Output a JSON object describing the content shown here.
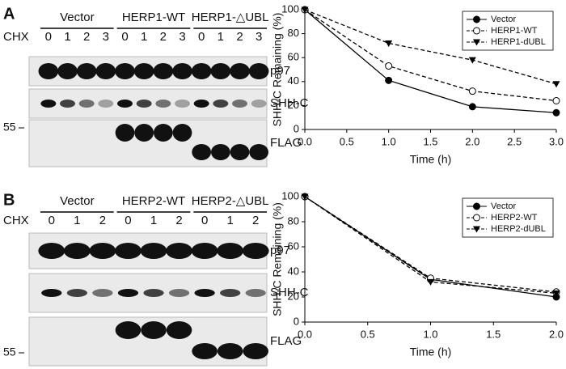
{
  "panels": [
    {
      "label": "A",
      "treatment": "CHX",
      "marker_label": "55",
      "groups": [
        {
          "name": "Vector",
          "lanes": [
            "0",
            "1",
            "2",
            "3"
          ]
        },
        {
          "name": "HERP1-WT",
          "lanes": [
            "0",
            "1",
            "2",
            "3"
          ]
        },
        {
          "name": "HERP1-△UBL",
          "lanes": [
            "0",
            "1",
            "2",
            "3"
          ]
        }
      ],
      "rows": [
        "p97",
        "SHH-C",
        "FLAG"
      ]
    },
    {
      "label": "B",
      "treatment": "CHX",
      "marker_label": "55",
      "groups": [
        {
          "name": "Vector",
          "lanes": [
            "0",
            "1",
            "2"
          ]
        },
        {
          "name": "HERP2-WT",
          "lanes": [
            "0",
            "1",
            "2"
          ]
        },
        {
          "name": "HERP2-△UBL",
          "lanes": [
            "0",
            "1",
            "2"
          ]
        }
      ],
      "rows": [
        "p97",
        "SHH-C",
        "FLAG"
      ]
    }
  ],
  "chart_data": [
    {
      "type": "line",
      "ylabel": "SHH-C Remaining (%)",
      "xlabel": "Time (h)",
      "x": [
        0,
        1,
        2,
        3
      ],
      "xlim": [
        0,
        3
      ],
      "xticks": [
        {
          "value": 0,
          "label": "0.0"
        },
        {
          "value": 0.5,
          "label": "0.5"
        },
        {
          "value": 1,
          "label": "1.0"
        },
        {
          "value": 1.5,
          "label": "1.5"
        },
        {
          "value": 2,
          "label": "2.0"
        },
        {
          "value": 2.5,
          "label": "2.5"
        },
        {
          "value": 3,
          "label": "3.0"
        }
      ],
      "ylim": [
        0,
        100
      ],
      "yticks": [
        0,
        20,
        40,
        60,
        80,
        100
      ],
      "legend": "upper right",
      "series": [
        {
          "name": "Vector",
          "color": "#000000",
          "marker": "circle",
          "dash": false,
          "values": [
            100,
            41,
            19,
            14
          ]
        },
        {
          "name": "HERP1-WT",
          "color": "#000000",
          "marker": "circle-open",
          "dash": true,
          "values": [
            100,
            53,
            32,
            24
          ]
        },
        {
          "name": "HERP1-dUBL",
          "color": "#000000",
          "marker": "triangle-down",
          "dash": true,
          "values": [
            100,
            72,
            58,
            38
          ]
        }
      ]
    },
    {
      "type": "line",
      "ylabel": "SHH-C Remaining (%)",
      "xlabel": "Time (h)",
      "x": [
        0,
        1,
        2
      ],
      "xlim": [
        0,
        2
      ],
      "xticks": [
        {
          "value": 0,
          "label": "0.0"
        },
        {
          "value": 0.5,
          "label": "0.5"
        },
        {
          "value": 1,
          "label": "1.0"
        },
        {
          "value": 1.5,
          "label": "1.5"
        },
        {
          "value": 2,
          "label": "2.0"
        }
      ],
      "ylim": [
        0,
        100
      ],
      "yticks": [
        0,
        20,
        40,
        60,
        80,
        100
      ],
      "legend": "upper right",
      "series": [
        {
          "name": "Vector",
          "color": "#000000",
          "marker": "circle",
          "dash": false,
          "values": [
            100,
            34,
            20
          ]
        },
        {
          "name": "HERP2-WT",
          "color": "#000000",
          "marker": "circle-open",
          "dash": true,
          "values": [
            100,
            35,
            24
          ]
        },
        {
          "name": "HERP2-dUBL",
          "color": "#000000",
          "marker": "triangle-down",
          "dash": true,
          "values": [
            100,
            32,
            23
          ]
        }
      ]
    }
  ]
}
